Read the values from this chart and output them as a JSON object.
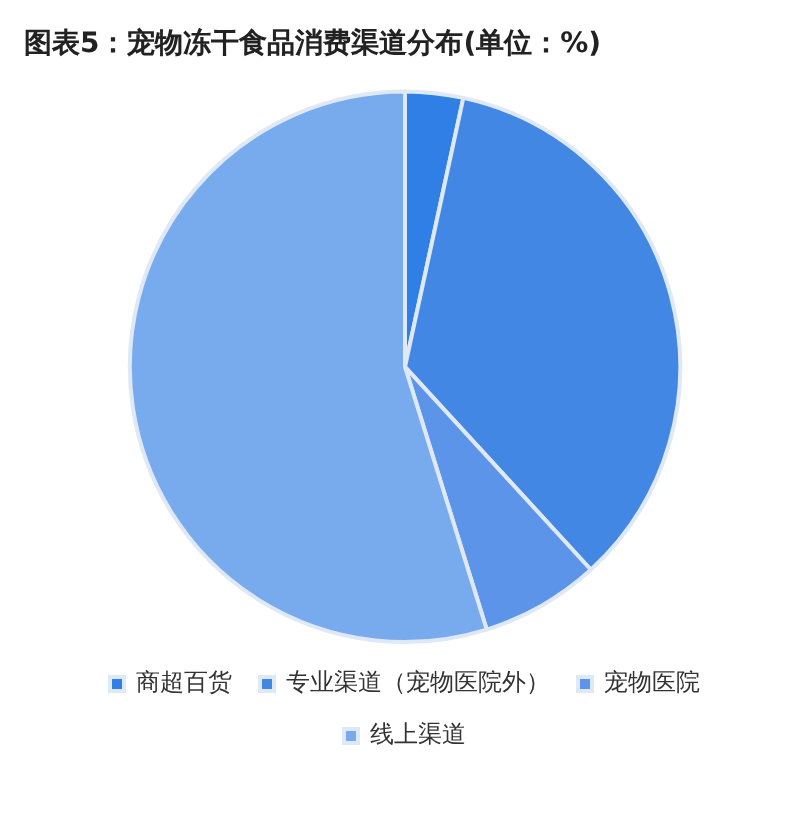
{
  "chart_data": {
    "type": "pie",
    "title": "图表5：宠物冻干食品消费渠道分布(单位：%)",
    "categories": [
      "商超百货",
      "专业渠道（宠物医院外）",
      "宠物医院",
      "线上渠道"
    ],
    "values": [
      3.4,
      34.8,
      7,
      54.8
    ],
    "colors": [
      "#2f7fe6",
      "#4287e4",
      "#5b94e8",
      "#78aaee"
    ],
    "legend": "bottom"
  }
}
